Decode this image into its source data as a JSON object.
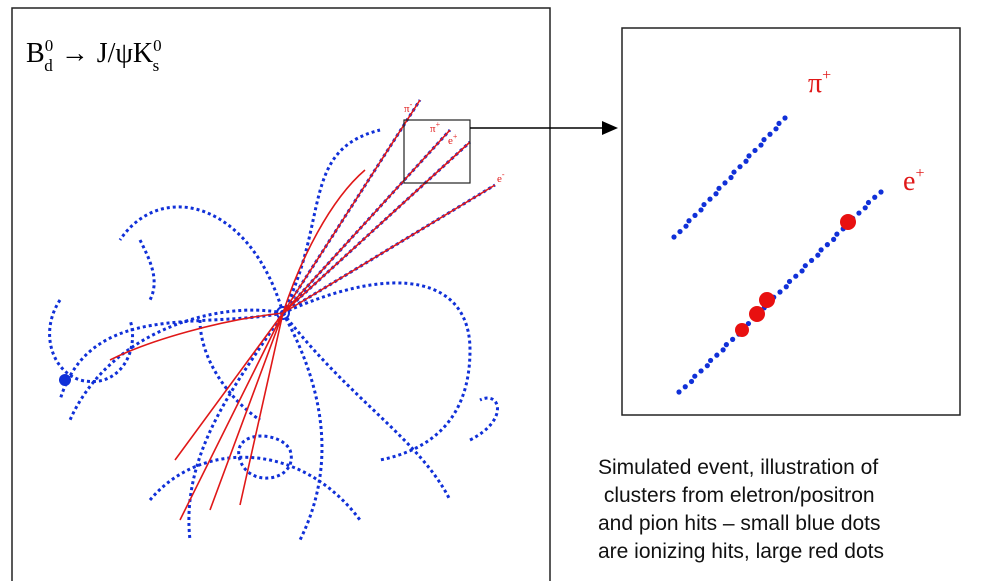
{
  "event_display": {
    "title": {
      "base": "B",
      "sub": "d",
      "sup": "0",
      "arrow": "→",
      "product": "J/ψK",
      "sub2": "s",
      "sup2": "0"
    },
    "track_labels": [
      "π",
      "π",
      "e",
      "e"
    ],
    "track_charges": [
      "-",
      "+",
      "+",
      "-"
    ]
  },
  "zoom_panel": {
    "labels": [
      "π",
      "e"
    ],
    "charges": [
      "+",
      "+"
    ]
  },
  "caption_lines": [
    "Simulated event, illustration of",
    " clusters from eletron/positron",
    "and pion hits – small blue dots",
    "are ionizing hits, large red dots"
  ]
}
